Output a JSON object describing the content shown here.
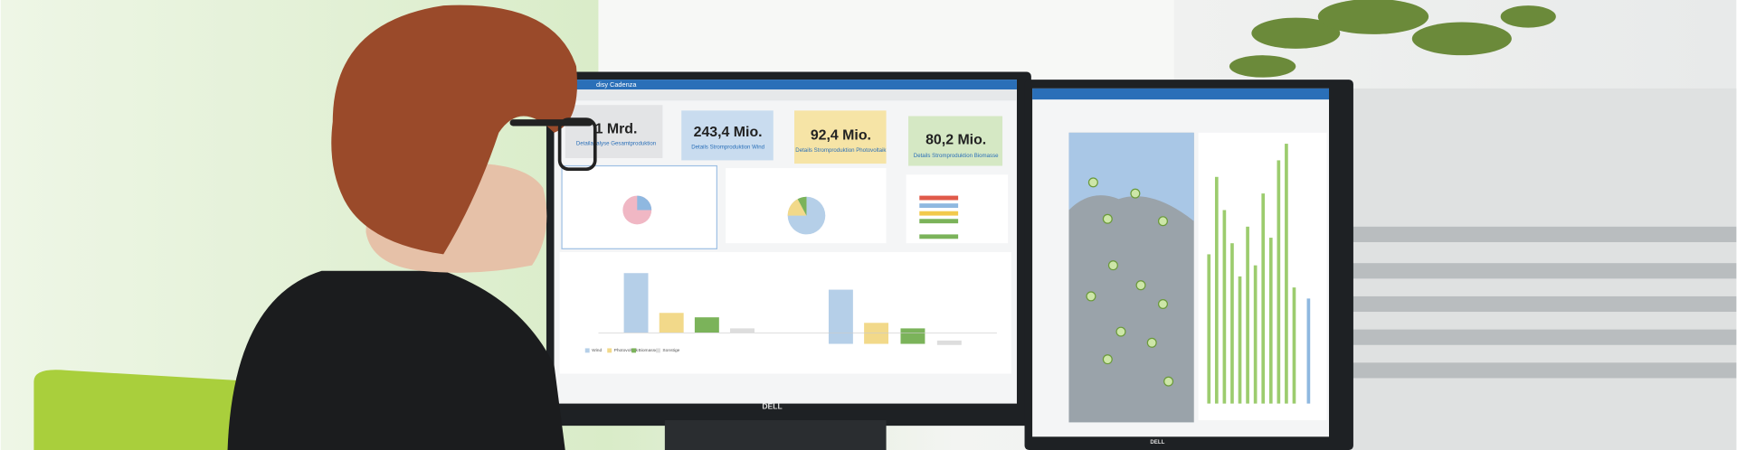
{
  "left_screen": {
    "app_title": "disy Cadenza",
    "kpis": [
      {
        "value": "1 Mrd.",
        "label": "Detailanalyse Gesamtproduktion"
      },
      {
        "value": "243,4 Mio.",
        "label": "Details Stromproduktion Wind"
      },
      {
        "value": "92,4 Mio.",
        "label": "Details Stromproduktion Photovoltaik"
      },
      {
        "value": "80,2 Mio.",
        "label": "Details Stromproduktion Biomasse"
      }
    ],
    "legend": [
      "Wind",
      "Photovoltaik",
      "Biomasse",
      "Sonstige"
    ]
  },
  "monitor_brands": [
    "DELL",
    "DELL"
  ]
}
